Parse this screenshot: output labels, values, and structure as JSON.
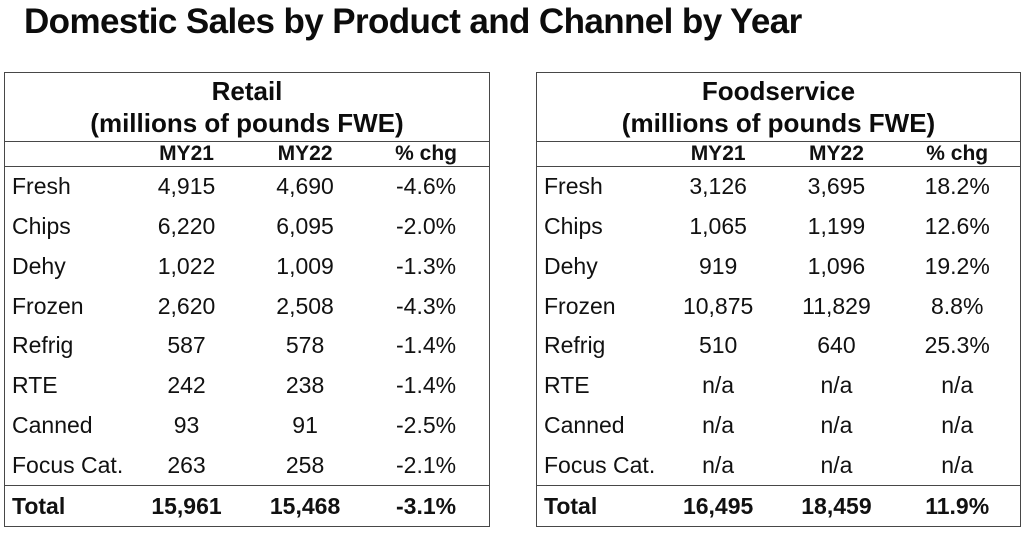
{
  "page_title": "Domestic Sales by Product and Channel by Year",
  "colors": {
    "background": "#ffffff",
    "text": "#111111",
    "border": "#474747"
  },
  "chart_data": [
    {
      "type": "table",
      "title": "Retail",
      "subtitle": "(millions of pounds FWE)",
      "columns": [
        "",
        "MY21",
        "MY22",
        "% chg"
      ],
      "rows": [
        [
          "Fresh",
          "4,915",
          "4,690",
          "-4.6%"
        ],
        [
          "Chips",
          "6,220",
          "6,095",
          "-2.0%"
        ],
        [
          "Dehy",
          "1,022",
          "1,009",
          "-1.3%"
        ],
        [
          "Frozen",
          "2,620",
          "2,508",
          "-4.3%"
        ],
        [
          "Refrig",
          "587",
          "578",
          "-1.4%"
        ],
        [
          "RTE",
          "242",
          "238",
          "-1.4%"
        ],
        [
          "Canned",
          "93",
          "91",
          "-2.5%"
        ],
        [
          "Focus Cat.",
          "263",
          "258",
          "-2.1%"
        ]
      ],
      "total_row": [
        "Total",
        "15,961",
        "15,468",
        "-3.1%"
      ]
    },
    {
      "type": "table",
      "title": "Foodservice",
      "subtitle": "(millions of pounds FWE)",
      "columns": [
        "",
        "MY21",
        "MY22",
        "% chg"
      ],
      "rows": [
        [
          "Fresh",
          "3,126",
          "3,695",
          "18.2%"
        ],
        [
          "Chips",
          "1,065",
          "1,199",
          "12.6%"
        ],
        [
          "Dehy",
          "919",
          "1,096",
          "19.2%"
        ],
        [
          "Frozen",
          "10,875",
          "11,829",
          "8.8%"
        ],
        [
          "Refrig",
          "510",
          "640",
          "25.3%"
        ],
        [
          "RTE",
          "n/a",
          "n/a",
          "n/a"
        ],
        [
          "Canned",
          "n/a",
          "n/a",
          "n/a"
        ],
        [
          "Focus Cat.",
          "n/a",
          "n/a",
          "n/a"
        ]
      ],
      "total_row": [
        "Total",
        "16,495",
        "18,459",
        "11.9%"
      ]
    }
  ]
}
